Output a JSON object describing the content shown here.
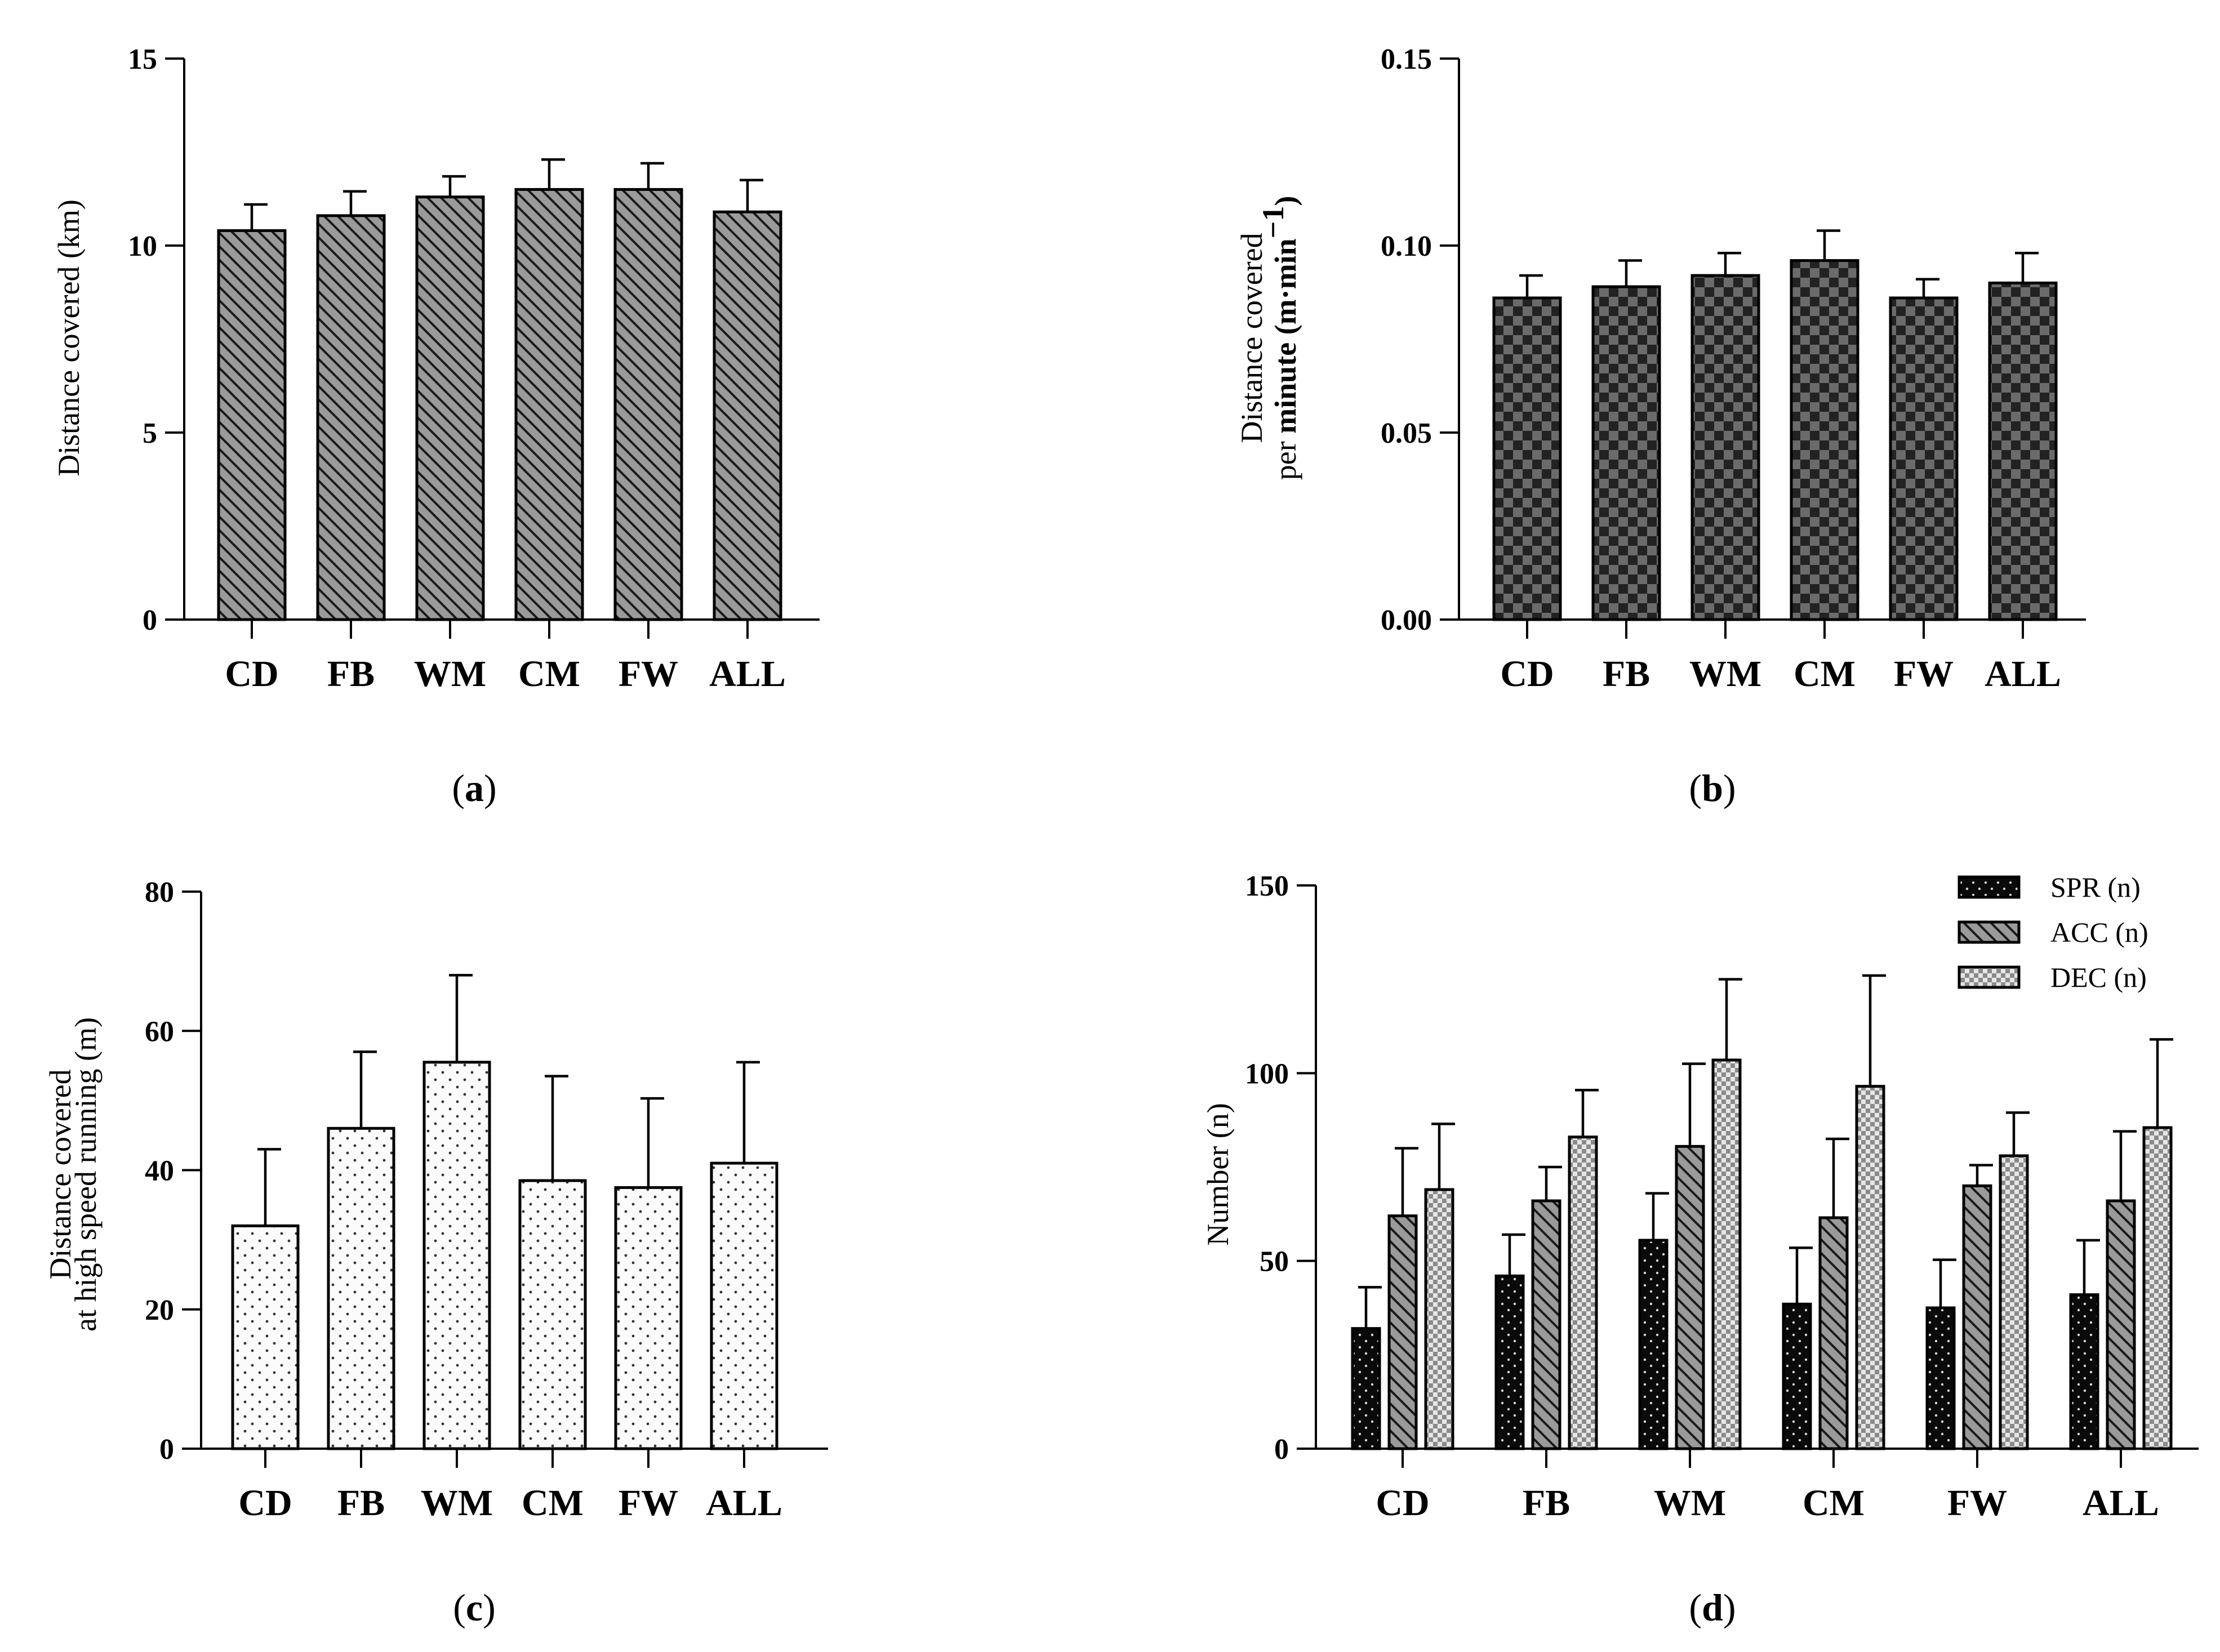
{
  "figure": {
    "panels": [
      {
        "id": "a",
        "caption_open": "(",
        "caption_letter": "a",
        "caption_close": ")"
      },
      {
        "id": "b",
        "caption_open": "(",
        "caption_letter": "b",
        "caption_close": ")"
      },
      {
        "id": "c",
        "caption_open": "(",
        "caption_letter": "c",
        "caption_close": ")"
      },
      {
        "id": "d",
        "caption_open": "(",
        "caption_letter": "d",
        "caption_close": ")"
      }
    ]
  },
  "chart_data": [
    {
      "panel": "a",
      "type": "bar",
      "categories": [
        "CD",
        "FB",
        "WM",
        "CM",
        "FW",
        "ALL"
      ],
      "values": [
        10.4,
        10.8,
        11.3,
        11.5,
        11.5,
        10.9
      ],
      "errors": [
        0.7,
        0.65,
        0.55,
        0.8,
        0.7,
        0.85
      ],
      "ylabel": "Distance covered (km)",
      "ylim": [
        0,
        15
      ],
      "yticks": [
        "0",
        "5",
        "10",
        "15"
      ],
      "ytick_values": [
        0,
        5,
        10,
        15
      ],
      "fill": "diagonal-hatch-grey"
    },
    {
      "panel": "b",
      "type": "bar",
      "categories": [
        "CD",
        "FB",
        "WM",
        "CM",
        "FW",
        "ALL"
      ],
      "values": [
        0.086,
        0.089,
        0.092,
        0.096,
        0.086,
        0.09
      ],
      "errors": [
        0.006,
        0.007,
        0.006,
        0.008,
        0.005,
        0.008
      ],
      "ylabel_line1": "Distance covered",
      "ylabel_line2_prefix": "per ",
      "ylabel_line2_bold": "minute (m·min",
      "ylabel_line2_sup": "−1",
      "ylabel_line2_suffix": ")",
      "ylim": [
        0,
        0.15
      ],
      "yticks": [
        "0.00",
        "0.05",
        "0.10",
        "0.15"
      ],
      "ytick_values": [
        0,
        0.05,
        0.1,
        0.15
      ],
      "fill": "checkerboard-dark"
    },
    {
      "panel": "c",
      "type": "bar",
      "categories": [
        "CD",
        "FB",
        "WM",
        "CM",
        "FW",
        "ALL"
      ],
      "values": [
        32,
        46,
        55.5,
        38.5,
        37.5,
        41
      ],
      "errors": [
        11,
        11,
        12.5,
        15,
        12.8,
        14.5
      ],
      "ylabel_line1": "Distance covered",
      "ylabel_line2": "at high speed running (m)",
      "ylim": [
        0,
        80
      ],
      "yticks": [
        "0",
        "20",
        "40",
        "60",
        "80"
      ],
      "ytick_values": [
        0,
        20,
        40,
        60,
        80
      ],
      "fill": "dots-light"
    },
    {
      "panel": "d",
      "type": "bar",
      "categories": [
        "CD",
        "FB",
        "WM",
        "CM",
        "FW",
        "ALL"
      ],
      "series": [
        {
          "name": "SPR (n)",
          "values": [
            32,
            46,
            55.5,
            38.5,
            37.5,
            41
          ],
          "errors": [
            11,
            11,
            12.5,
            15,
            12.8,
            14.5
          ],
          "fill": "dots-black"
        },
        {
          "name": "ACC (n)",
          "values": [
            62,
            66,
            80.5,
            61.5,
            70,
            66
          ],
          "errors": [
            18,
            9,
            22,
            21,
            5.5,
            18.5
          ],
          "fill": "diagonal-hatch-grey"
        },
        {
          "name": "DEC (n)",
          "values": [
            69,
            83,
            103.5,
            96.5,
            78,
            85.5
          ],
          "errors": [
            17.5,
            12.5,
            21.5,
            29.5,
            11.5,
            23.5
          ],
          "fill": "checkerboard-light"
        }
      ],
      "ylabel": "Number (n)",
      "ylim": [
        0,
        150
      ],
      "yticks": [
        "0",
        "50",
        "100",
        "150"
      ],
      "ytick_values": [
        0,
        50,
        100,
        150
      ],
      "legend_position": "top-right"
    }
  ]
}
